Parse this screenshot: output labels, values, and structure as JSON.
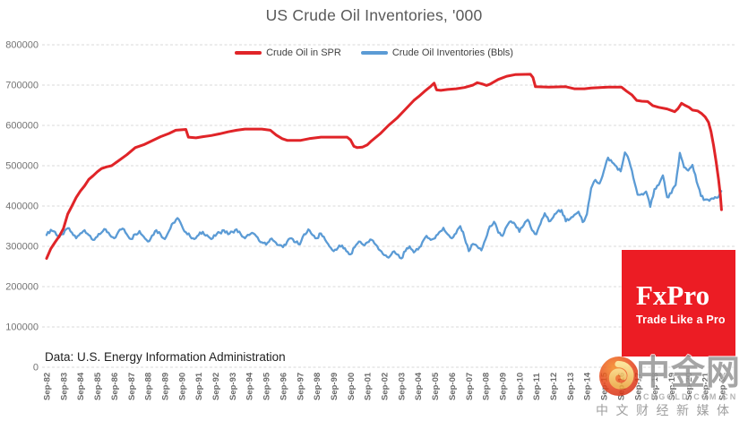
{
  "title": "US Crude Oil Inventories, '000",
  "source_note": "Data: U.S. Energy Information Administration",
  "legend": [
    {
      "label": "Crude Oil in SPR",
      "color": "#e02428"
    },
    {
      "label": "Crude Oil Inventories (Bbls)",
      "color": "#5b9bd5"
    }
  ],
  "branding": {
    "fxpro_name": "FxPro",
    "fxpro_tagline": "Trade Like a Pro",
    "fxpro_bg": "#ec1c24"
  },
  "watermark": {
    "site_name": "中金网",
    "domain": "CNGOLD.COM.CN",
    "tagline": "中文财经新媒体"
  },
  "chart_data": {
    "type": "line",
    "title": "US Crude Oil Inventories, '000",
    "xlabel": "",
    "ylabel": "",
    "units": "thousand barrels ('000)",
    "ylim": [
      0,
      800000
    ],
    "y_ticks": [
      0,
      100000,
      200000,
      300000,
      400000,
      500000,
      600000,
      700000,
      800000
    ],
    "x_start_year": 1982.75,
    "x_tick_step_years": 1,
    "grid": "horizontal-dashed",
    "legend_position": "top-center",
    "x_tick_labels": [
      "Sep-82",
      "Sep-83",
      "Sep-84",
      "Sep-85",
      "Sep-86",
      "Sep-87",
      "Sep-88",
      "Sep-89",
      "Sep-90",
      "Sep-91",
      "Sep-92",
      "Sep-93",
      "Sep-94",
      "Sep-95",
      "Sep-96",
      "Sep-97",
      "Sep-98",
      "Sep-99",
      "Sep-00",
      "Sep-01",
      "Sep-02",
      "Sep-03",
      "Sep-04",
      "Sep-05",
      "Sep-06",
      "Sep-07",
      "Sep-08",
      "Sep-09",
      "Sep-10",
      "Sep-11",
      "Sep-12",
      "Sep-13",
      "Sep-14",
      "Sep-15",
      "Sep-16",
      "Sep-17",
      "Sep-18",
      "Sep-19",
      "Sep-20",
      "Sep-21",
      "Sep-22"
    ],
    "series": [
      {
        "name": "Crude Oil Inventories (Bbls)",
        "color": "#5b9bd5",
        "width": 2.3,
        "jitter": 4200,
        "points": [
          [
            1982.75,
            328000
          ],
          [
            1983.0,
            341000
          ],
          [
            1983.25,
            336000
          ],
          [
            1983.5,
            322000
          ],
          [
            1983.75,
            330000
          ],
          [
            1984.0,
            345000
          ],
          [
            1984.25,
            334000
          ],
          [
            1984.5,
            320000
          ],
          [
            1984.75,
            332000
          ],
          [
            1985.0,
            340000
          ],
          [
            1985.25,
            328000
          ],
          [
            1985.5,
            316000
          ],
          [
            1985.75,
            324000
          ],
          [
            1986.0,
            334000
          ],
          [
            1986.25,
            342000
          ],
          [
            1986.5,
            328000
          ],
          [
            1986.75,
            320000
          ],
          [
            1987.0,
            336000
          ],
          [
            1987.25,
            344000
          ],
          [
            1987.5,
            330000
          ],
          [
            1987.75,
            318000
          ],
          [
            1988.0,
            330000
          ],
          [
            1988.25,
            338000
          ],
          [
            1988.5,
            324000
          ],
          [
            1988.75,
            312000
          ],
          [
            1989.0,
            327000
          ],
          [
            1989.25,
            340000
          ],
          [
            1989.5,
            330000
          ],
          [
            1989.75,
            318000
          ],
          [
            1990.0,
            338000
          ],
          [
            1990.25,
            358000
          ],
          [
            1990.5,
            370000
          ],
          [
            1990.75,
            352000
          ],
          [
            1991.0,
            335000
          ],
          [
            1991.25,
            325000
          ],
          [
            1991.5,
            318000
          ],
          [
            1991.75,
            328000
          ],
          [
            1992.0,
            336000
          ],
          [
            1992.25,
            328000
          ],
          [
            1992.5,
            318000
          ],
          [
            1992.75,
            326000
          ],
          [
            1993.0,
            334000
          ],
          [
            1993.25,
            340000
          ],
          [
            1993.5,
            330000
          ],
          [
            1993.75,
            336000
          ],
          [
            1994.0,
            342000
          ],
          [
            1994.25,
            330000
          ],
          [
            1994.5,
            320000
          ],
          [
            1994.75,
            328000
          ],
          [
            1995.0,
            332000
          ],
          [
            1995.25,
            322000
          ],
          [
            1995.5,
            310000
          ],
          [
            1995.75,
            304000
          ],
          [
            1996.0,
            318000
          ],
          [
            1996.25,
            312000
          ],
          [
            1996.5,
            303000
          ],
          [
            1996.75,
            298000
          ],
          [
            1997.0,
            312000
          ],
          [
            1997.25,
            320000
          ],
          [
            1997.5,
            310000
          ],
          [
            1997.75,
            305000
          ],
          [
            1998.0,
            330000
          ],
          [
            1998.25,
            342000
          ],
          [
            1998.5,
            328000
          ],
          [
            1998.75,
            320000
          ],
          [
            1999.0,
            332000
          ],
          [
            1999.25,
            316000
          ],
          [
            1999.5,
            300000
          ],
          [
            1999.75,
            288000
          ],
          [
            2000.0,
            296000
          ],
          [
            2000.25,
            302000
          ],
          [
            2000.5,
            288000
          ],
          [
            2000.75,
            280000
          ],
          [
            2001.0,
            298000
          ],
          [
            2001.25,
            312000
          ],
          [
            2001.5,
            304000
          ],
          [
            2001.75,
            310000
          ],
          [
            2002.0,
            316000
          ],
          [
            2002.25,
            304000
          ],
          [
            2002.5,
            290000
          ],
          [
            2002.75,
            278000
          ],
          [
            2003.0,
            272000
          ],
          [
            2003.25,
            286000
          ],
          [
            2003.5,
            280000
          ],
          [
            2003.75,
            270000
          ],
          [
            2004.0,
            288000
          ],
          [
            2004.25,
            300000
          ],
          [
            2004.5,
            285000
          ],
          [
            2004.75,
            292000
          ],
          [
            2005.0,
            310000
          ],
          [
            2005.25,
            326000
          ],
          [
            2005.5,
            316000
          ],
          [
            2005.75,
            320000
          ],
          [
            2006.0,
            335000
          ],
          [
            2006.25,
            346000
          ],
          [
            2006.5,
            330000
          ],
          [
            2006.75,
            320000
          ],
          [
            2007.0,
            332000
          ],
          [
            2007.25,
            350000
          ],
          [
            2007.5,
            322000
          ],
          [
            2007.75,
            288000
          ],
          [
            2008.0,
            306000
          ],
          [
            2008.25,
            300000
          ],
          [
            2008.5,
            290000
          ],
          [
            2008.75,
            318000
          ],
          [
            2009.0,
            350000
          ],
          [
            2009.25,
            361000
          ],
          [
            2009.5,
            334000
          ],
          [
            2009.75,
            326000
          ],
          [
            2010.0,
            350000
          ],
          [
            2010.25,
            362000
          ],
          [
            2010.5,
            354000
          ],
          [
            2010.75,
            336000
          ],
          [
            2011.0,
            352000
          ],
          [
            2011.25,
            366000
          ],
          [
            2011.5,
            340000
          ],
          [
            2011.75,
            330000
          ],
          [
            2012.0,
            356000
          ],
          [
            2012.25,
            382000
          ],
          [
            2012.5,
            362000
          ],
          [
            2012.75,
            372000
          ],
          [
            2013.0,
            386000
          ],
          [
            2013.25,
            390000
          ],
          [
            2013.5,
            362000
          ],
          [
            2013.75,
            368000
          ],
          [
            2014.0,
            378000
          ],
          [
            2014.25,
            386000
          ],
          [
            2014.5,
            360000
          ],
          [
            2014.75,
            380000
          ],
          [
            2015.0,
            444000
          ],
          [
            2015.25,
            465000
          ],
          [
            2015.5,
            456000
          ],
          [
            2015.75,
            487000
          ],
          [
            2016.0,
            520000
          ],
          [
            2016.25,
            508000
          ],
          [
            2016.5,
            498000
          ],
          [
            2016.75,
            486000
          ],
          [
            2017.0,
            533000
          ],
          [
            2017.25,
            512000
          ],
          [
            2017.5,
            470000
          ],
          [
            2017.75,
            428000
          ],
          [
            2018.0,
            430000
          ],
          [
            2018.25,
            436000
          ],
          [
            2018.5,
            398000
          ],
          [
            2018.75,
            442000
          ],
          [
            2019.0,
            452000
          ],
          [
            2019.25,
            476000
          ],
          [
            2019.5,
            422000
          ],
          [
            2019.75,
            432000
          ],
          [
            2020.0,
            452000
          ],
          [
            2020.25,
            532000
          ],
          [
            2020.5,
            496000
          ],
          [
            2020.75,
            488000
          ],
          [
            2021.0,
            502000
          ],
          [
            2021.25,
            460000
          ],
          [
            2021.5,
            425000
          ],
          [
            2021.75,
            416000
          ],
          [
            2022.0,
            413000
          ],
          [
            2022.25,
            418000
          ],
          [
            2022.5,
            421000
          ],
          [
            2022.7,
            437000
          ]
        ]
      },
      {
        "name": "Crude Oil in SPR",
        "color": "#e02428",
        "width": 3,
        "jitter": 0,
        "points": [
          [
            1982.75,
            270000
          ],
          [
            1983.0,
            294000
          ],
          [
            1983.25,
            310000
          ],
          [
            1983.5,
            325000
          ],
          [
            1983.75,
            344000
          ],
          [
            1984.0,
            380000
          ],
          [
            1984.25,
            400000
          ],
          [
            1984.5,
            421000
          ],
          [
            1984.75,
            437000
          ],
          [
            1985.0,
            450000
          ],
          [
            1985.25,
            466000
          ],
          [
            1985.5,
            475000
          ],
          [
            1985.75,
            485000
          ],
          [
            1986.0,
            493000
          ],
          [
            1986.3,
            497000
          ],
          [
            1986.6,
            500000
          ],
          [
            1987.0,
            512000
          ],
          [
            1987.5,
            527000
          ],
          [
            1988.0,
            545000
          ],
          [
            1988.5,
            552000
          ],
          [
            1989.0,
            562000
          ],
          [
            1989.5,
            572000
          ],
          [
            1990.0,
            580000
          ],
          [
            1990.4,
            588000
          ],
          [
            1991.0,
            590000
          ],
          [
            1991.15,
            571000
          ],
          [
            1991.6,
            569000
          ],
          [
            1992.0,
            572000
          ],
          [
            1992.5,
            575000
          ],
          [
            1993.0,
            579000
          ],
          [
            1993.5,
            584000
          ],
          [
            1994.0,
            588000
          ],
          [
            1994.5,
            591000
          ],
          [
            1995.5,
            591000
          ],
          [
            1996.0,
            588000
          ],
          [
            1996.35,
            576000
          ],
          [
            1996.7,
            567000
          ],
          [
            1997.0,
            563000
          ],
          [
            1997.8,
            563000
          ],
          [
            1998.3,
            567000
          ],
          [
            1999.0,
            571000
          ],
          [
            2000.55,
            571000
          ],
          [
            2000.75,
            564000
          ],
          [
            2000.95,
            548000
          ],
          [
            2001.15,
            545000
          ],
          [
            2001.45,
            546000
          ],
          [
            2001.75,
            552000
          ],
          [
            2002.0,
            562000
          ],
          [
            2002.5,
            579000
          ],
          [
            2003.0,
            600000
          ],
          [
            2003.5,
            618000
          ],
          [
            2004.0,
            640000
          ],
          [
            2004.5,
            662000
          ],
          [
            2004.8,
            672000
          ],
          [
            2005.2,
            687000
          ],
          [
            2005.5,
            697000
          ],
          [
            2005.7,
            705000
          ],
          [
            2005.85,
            688000
          ],
          [
            2006.1,
            687000
          ],
          [
            2006.5,
            689000
          ],
          [
            2007.0,
            691000
          ],
          [
            2007.5,
            694000
          ],
          [
            2008.0,
            700000
          ],
          [
            2008.25,
            706000
          ],
          [
            2008.55,
            703000
          ],
          [
            2008.8,
            699000
          ],
          [
            2009.0,
            702000
          ],
          [
            2009.5,
            714000
          ],
          [
            2010.0,
            722000
          ],
          [
            2010.5,
            726000
          ],
          [
            2011.4,
            727000
          ],
          [
            2011.55,
            719000
          ],
          [
            2011.7,
            696000
          ],
          [
            2012.5,
            695000
          ],
          [
            2013.5,
            696000
          ],
          [
            2014.0,
            691000
          ],
          [
            2014.6,
            691000
          ],
          [
            2015.0,
            693000
          ],
          [
            2016.0,
            695000
          ],
          [
            2016.8,
            695000
          ],
          [
            2017.1,
            685000
          ],
          [
            2017.4,
            676000
          ],
          [
            2017.7,
            662000
          ],
          [
            2018.0,
            660000
          ],
          [
            2018.35,
            659000
          ],
          [
            2018.65,
            649000
          ],
          [
            2019.0,
            645000
          ],
          [
            2019.5,
            641000
          ],
          [
            2019.95,
            634000
          ],
          [
            2020.15,
            642000
          ],
          [
            2020.35,
            655000
          ],
          [
            2020.55,
            650000
          ],
          [
            2020.8,
            645000
          ],
          [
            2021.0,
            638000
          ],
          [
            2021.3,
            636000
          ],
          [
            2021.55,
            629000
          ],
          [
            2021.75,
            621000
          ],
          [
            2021.95,
            608000
          ],
          [
            2022.1,
            585000
          ],
          [
            2022.25,
            550000
          ],
          [
            2022.4,
            510000
          ],
          [
            2022.55,
            465000
          ],
          [
            2022.65,
            428000
          ],
          [
            2022.72,
            391000
          ]
        ]
      }
    ]
  }
}
